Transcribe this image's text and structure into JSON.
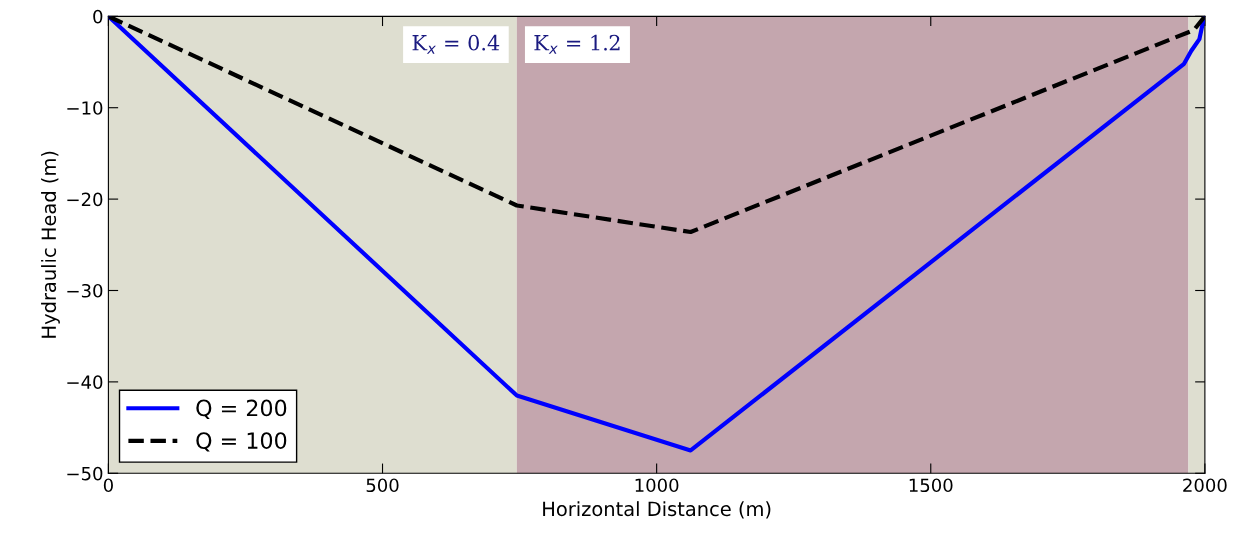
{
  "chart_data": {
    "type": "line",
    "xlabel": "Horizontal Distance (m)",
    "ylabel": "Hydraulic Head (m)",
    "xlim": [
      0,
      2000
    ],
    "ylim": [
      -50,
      0
    ],
    "xticks": [
      0,
      500,
      1000,
      1500,
      2000
    ],
    "yticks": [
      -50,
      -40,
      -30,
      -20,
      -10,
      0
    ],
    "grid": false,
    "legend": "bottom left",
    "series": [
      {
        "name": "Q = 200",
        "color": "#0000ff",
        "line_style": "solid",
        "x": [
          0,
          745,
          1062,
          1962,
          1975,
          1990,
          1997,
          2000
        ],
        "values": [
          0,
          -41.5,
          -47.5,
          -5.2,
          -3.8,
          -2.5,
          -0.5,
          0
        ]
      },
      {
        "name": "Q = 100",
        "color": "#000000",
        "line_style": "dashed",
        "x": [
          0,
          745,
          1062,
          1980,
          2000
        ],
        "values": [
          0,
          -20.7,
          -23.6,
          -1.5,
          0
        ]
      }
    ],
    "bands": [
      {
        "axis": "x",
        "from": 0,
        "to": 745,
        "label": "K$_{x}$ = 0.4",
        "color": "#deded0"
      },
      {
        "axis": "x",
        "from": 745,
        "to": 1970,
        "label": "K$_{x}$ = 1.2",
        "color": "#c4a6ae"
      },
      {
        "axis": "x",
        "from": 1970,
        "to": 2000,
        "color": "#deded0"
      }
    ]
  }
}
